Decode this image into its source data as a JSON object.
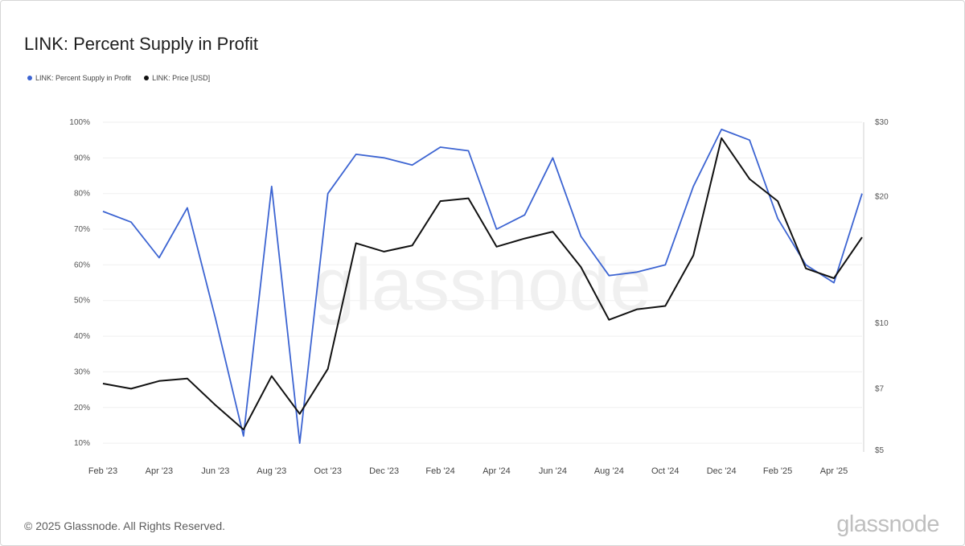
{
  "chart_data": {
    "type": "line",
    "title": "LINK: Percent Supply in Profit",
    "watermark": "glassnode",
    "x": [
      "Feb '23",
      "Mar '23",
      "Apr '23",
      "May '23",
      "Jun '23",
      "Jul '23",
      "Aug '23",
      "Sep '23",
      "Oct '23",
      "Nov '23",
      "Dec '23",
      "Jan '24",
      "Feb '24",
      "Mar '24",
      "Apr '24",
      "May '24",
      "Jun '24",
      "Jul '24",
      "Aug '24",
      "Sep '24",
      "Oct '24",
      "Nov '24",
      "Dec '24",
      "Jan '25",
      "Feb '25",
      "Mar '25",
      "Apr '25",
      "May '25"
    ],
    "x_ticks": [
      "Feb '23",
      "Apr '23",
      "Jun '23",
      "Aug '23",
      "Oct '23",
      "Dec '23",
      "Feb '24",
      "Apr '24",
      "Jun '24",
      "Aug '24",
      "Oct '24",
      "Dec '24",
      "Feb '25",
      "Apr '25"
    ],
    "y_left": {
      "ticks": [
        "100%",
        "90%",
        "80%",
        "70%",
        "60%",
        "50%",
        "40%",
        "30%",
        "20%",
        "10%"
      ],
      "range": [
        0.08,
        1.0
      ]
    },
    "y_right": {
      "ticks": [
        "$30",
        "$20",
        "$10",
        "$7",
        "$5"
      ],
      "range": [
        5,
        30
      ],
      "scale": "log"
    },
    "series": [
      {
        "name": "LINK: Percent Supply in Profit",
        "axis": "left",
        "color": "#3c64d2",
        "values": [
          0.75,
          0.72,
          0.62,
          0.76,
          0.45,
          0.12,
          0.82,
          0.1,
          0.8,
          0.91,
          0.9,
          0.88,
          0.93,
          0.92,
          0.7,
          0.74,
          0.9,
          0.68,
          0.57,
          0.58,
          0.6,
          0.82,
          0.98,
          0.95,
          0.73,
          0.6,
          0.55,
          0.8
        ]
      },
      {
        "name": "LINK: Price [USD]",
        "axis": "right",
        "color": "#111111",
        "values": [
          7.2,
          7.0,
          7.3,
          7.4,
          6.4,
          5.6,
          7.5,
          6.1,
          7.8,
          15.5,
          14.8,
          15.3,
          19.5,
          19.8,
          15.2,
          15.9,
          16.5,
          13.6,
          10.2,
          10.8,
          11.0,
          14.5,
          27.5,
          22.0,
          19.5,
          13.5,
          12.8,
          16.0
        ]
      }
    ],
    "legend_position": "top-left",
    "grid": true
  },
  "footer": {
    "copyright": "© 2025 Glassnode. All Rights Reserved.",
    "logo_text": "glassnode"
  }
}
